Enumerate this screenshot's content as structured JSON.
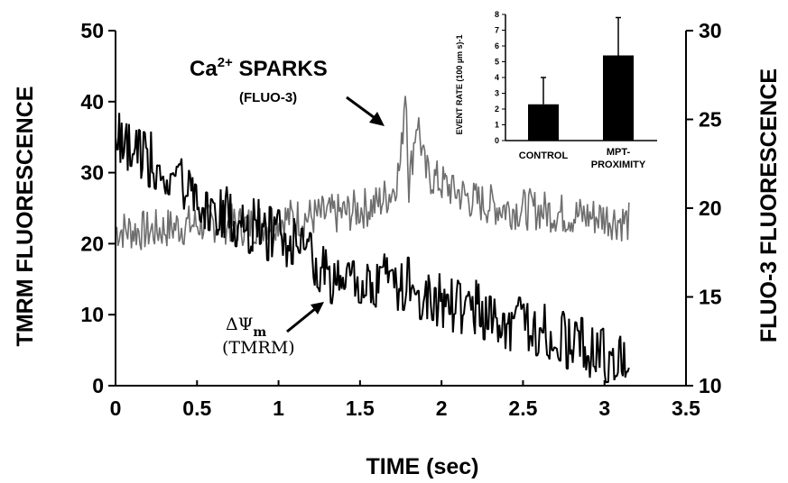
{
  "chart_data": [
    {
      "type": "line",
      "xlabel": "TIME (sec)",
      "ylabel": "TMRM FLUORESCENCE",
      "y2label": "FLUO-3 FLUORESCENCE",
      "xlim": [
        0,
        3.5
      ],
      "ylim": [
        0,
        50
      ],
      "y2lim": [
        10,
        30
      ],
      "xticks": [
        "0",
        "0.5",
        "1",
        "1.5",
        "2",
        "2.5",
        "3",
        "3.5"
      ],
      "yticks": [
        "0",
        "10",
        "20",
        "30",
        "40",
        "50"
      ],
      "y2ticks": [
        "10",
        "15",
        "20",
        "25",
        "30"
      ],
      "grid": false,
      "series": [
        {
          "axis": "right",
          "color": "#6e6e6e",
          "x": [
            0,
            0.2,
            0.4,
            0.6,
            0.8,
            1.0,
            1.2,
            1.4,
            1.6,
            1.7,
            1.75,
            1.78,
            1.8,
            1.85,
            1.9,
            2.0,
            2.2,
            2.4,
            2.6,
            2.8,
            3.0,
            3.15
          ],
          "y": [
            18.8,
            18.7,
            19.0,
            19.2,
            19.0,
            19.4,
            19.5,
            19.7,
            20.2,
            21.0,
            22.5,
            27.4,
            21.2,
            25.2,
            22.0,
            21.4,
            20.4,
            20.0,
            19.9,
            19.6,
            19.5,
            19.2
          ]
        },
        {
          "axis": "left",
          "color": "#000000",
          "x": [
            0,
            0.1,
            0.2,
            0.3,
            0.4,
            0.5,
            0.6,
            0.7,
            0.8,
            0.9,
            1.0,
            1.1,
            1.2,
            1.3,
            1.4,
            1.5,
            1.6,
            1.7,
            1.8,
            1.9,
            2.0,
            2.2,
            2.4,
            2.6,
            2.8,
            3.0,
            3.15
          ],
          "y": [
            35,
            34,
            32,
            30,
            28,
            26,
            25,
            24,
            23,
            22,
            21,
            20,
            18,
            16,
            14,
            15,
            14,
            15,
            14,
            13,
            12,
            11,
            9,
            8,
            6,
            4,
            3
          ]
        }
      ]
    },
    {
      "type": "bar",
      "ylabel": "EVENT RATE (100 µm s)-1",
      "ylim": [
        0,
        8
      ],
      "yticks": [
        "0",
        "1",
        "2",
        "3",
        "4",
        "5",
        "6",
        "7",
        "8"
      ],
      "categories": [
        "CONTROL",
        "MPT- PROXIMITY"
      ],
      "values": [
        2.3,
        5.4
      ],
      "errors": [
        1.7,
        2.4
      ]
    }
  ],
  "annotations": {
    "ca_prefix": "Ca",
    "ca_sup": "2+",
    "sparks": " SPARKS",
    "fluo3": "(FLUO-3)",
    "delta_psi": "ΔΨ",
    "delta_psi_sub": "m",
    "tmrm": "(TMRM)"
  },
  "colors": {
    "fluo3_trace": "#6e6e6e",
    "tmrm_trace": "#000000"
  }
}
